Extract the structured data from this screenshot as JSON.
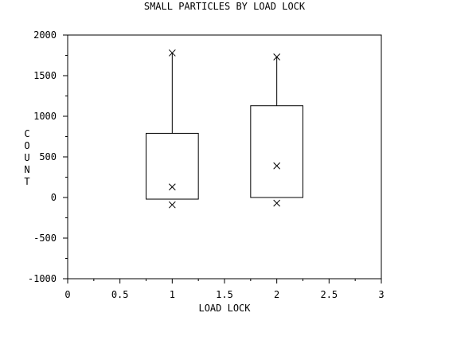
{
  "chart_data": {
    "type": "box",
    "title": "SMALL PARTICLES BY LOAD LOCK",
    "xlabel": "LOAD LOCK",
    "ylabel": "COUNT",
    "xlim": [
      0,
      3
    ],
    "ylim": [
      -1000,
      2000
    ],
    "x_ticks": [
      0,
      0.5,
      1,
      1.5,
      2,
      2.5,
      3
    ],
    "x_tick_labels": [
      "0",
      "0.5",
      "1",
      "1.5",
      "2",
      "2.5",
      "3"
    ],
    "y_ticks": [
      -1000,
      -500,
      0,
      500,
      1000,
      1500,
      2000
    ],
    "y_tick_labels": [
      "-1000",
      "-500",
      "0",
      "500",
      "1000",
      "1500",
      "2000"
    ],
    "grid": false,
    "boxes": [
      {
        "x": 1,
        "q1": -20,
        "q3": 790,
        "whisker_high": 1780,
        "markers": [
          1780,
          130,
          -90
        ]
      },
      {
        "x": 2,
        "q1": 0,
        "q3": 1130,
        "whisker_high": 1730,
        "markers": [
          1730,
          390,
          -70
        ]
      }
    ]
  }
}
